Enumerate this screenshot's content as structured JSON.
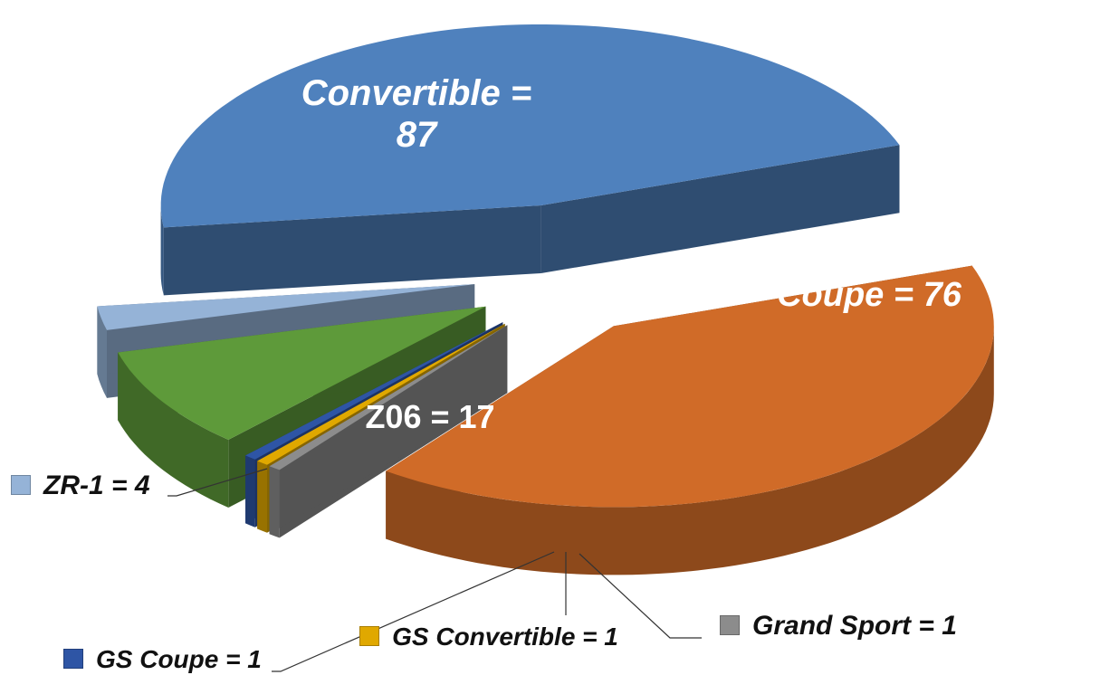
{
  "chart_data": {
    "type": "pie3d",
    "values": [
      87,
      76,
      1,
      1,
      1,
      17,
      4
    ],
    "value_labels": [
      "Convertible = 87",
      "Coupe = 76",
      "Grand Sport = 1",
      "GS Convertible = 1",
      "GS Coupe = 1",
      "Z06 = 17",
      "ZR-1 = 4"
    ],
    "colors": [
      "#4f81bd",
      "#d06b28",
      "#8c8c8c",
      "#e0a800",
      "#2e55a5",
      "#5e9a3a",
      "#95b3d7"
    ]
  }
}
